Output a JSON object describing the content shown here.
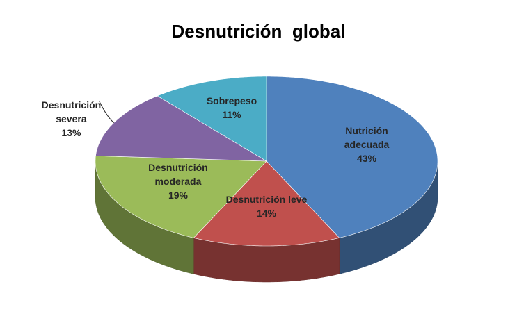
{
  "chart_data": {
    "type": "pie3d",
    "title": "Desnutrición  global",
    "categories": [
      "Nutrición adecuada",
      "Desnutrición leve",
      "Desnutrición moderada",
      "Desnutrición severa",
      "Sobrepeso"
    ],
    "values": [
      43,
      14,
      19,
      13,
      11
    ],
    "value_labels": [
      "43%",
      "14%",
      "19%",
      "13%",
      "11%"
    ],
    "colors": [
      "#4f81bd",
      "#c0504d",
      "#9bbb59",
      "#8064a2",
      "#4bacc6"
    ]
  }
}
